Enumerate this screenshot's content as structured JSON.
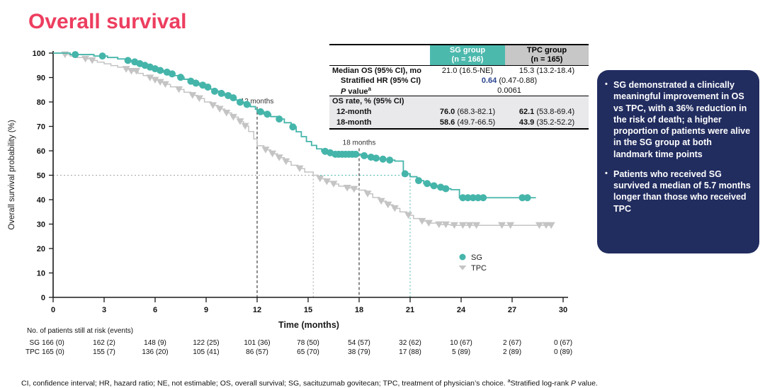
{
  "title": "Overall survival",
  "chart_data": {
    "type": "line",
    "subtype": "kaplan-meier-step",
    "title": "Overall survival",
    "xlabel": "Time (months)",
    "ylabel": "Overall survival probability (%)",
    "xlim": [
      0,
      30
    ],
    "ylim": [
      0,
      100
    ],
    "x_ticks": [
      0,
      3,
      6,
      9,
      12,
      15,
      18,
      21,
      24,
      27,
      30
    ],
    "y_ticks": [
      0,
      10,
      20,
      30,
      40,
      50,
      60,
      70,
      80,
      90,
      100
    ],
    "grid": false,
    "legend_position": "inside-right",
    "reference_line_percent": 50,
    "landmarks": [
      {
        "t": 12,
        "label": "12 months",
        "line_top_percent": 78
      },
      {
        "t": 18,
        "label": "18 months",
        "line_top_percent": 61
      }
    ],
    "medians": [
      {
        "series": "SG",
        "months": 21.0,
        "color": "#45B5AA"
      },
      {
        "series": "TPC",
        "months": 15.3,
        "color": "#A6A6A6"
      }
    ],
    "series": [
      {
        "name": "SG",
        "color": "#45B5AA",
        "marker": "circle",
        "end_t": 28.4,
        "steps": [
          [
            0,
            100
          ],
          [
            1,
            99.4
          ],
          [
            2.4,
            98.8
          ],
          [
            3.2,
            98.2
          ],
          [
            3.8,
            97.6
          ],
          [
            4.3,
            97
          ],
          [
            4.7,
            96.4
          ],
          [
            5,
            95.7
          ],
          [
            5.3,
            95
          ],
          [
            5.6,
            94.3
          ],
          [
            5.9,
            93.6
          ],
          [
            6.2,
            92.9
          ],
          [
            6.5,
            92.2
          ],
          [
            6.8,
            91.5
          ],
          [
            7.1,
            90.8
          ],
          [
            7.4,
            90.1
          ],
          [
            7.7,
            89.3
          ],
          [
            8,
            88.5
          ],
          [
            8.3,
            87.7
          ],
          [
            8.6,
            86.9
          ],
          [
            8.9,
            86.1
          ],
          [
            9.2,
            85.3
          ],
          [
            9.5,
            84.4
          ],
          [
            9.8,
            83.5
          ],
          [
            10.1,
            82.6
          ],
          [
            10.4,
            81.7
          ],
          [
            10.7,
            80.8
          ],
          [
            11,
            79.9
          ],
          [
            11.3,
            79
          ],
          [
            11.6,
            78.1
          ],
          [
            11.9,
            77
          ],
          [
            12,
            76
          ],
          [
            12.4,
            75
          ],
          [
            12.8,
            74
          ],
          [
            13.2,
            73
          ],
          [
            13.6,
            71.5
          ],
          [
            14,
            69.8
          ],
          [
            14.3,
            67.8
          ],
          [
            14.6,
            65.8
          ],
          [
            14.9,
            63.8
          ],
          [
            15.2,
            62.2
          ],
          [
            15.5,
            60.8
          ],
          [
            15.8,
            59.8
          ],
          [
            16.1,
            59.2
          ],
          [
            16.4,
            58.6
          ],
          [
            18.1,
            58
          ],
          [
            18.5,
            57.4
          ],
          [
            18.9,
            57
          ],
          [
            19.3,
            56.6
          ],
          [
            19.7,
            56.2
          ],
          [
            20.1,
            55.8
          ],
          [
            20.6,
            50.6
          ],
          [
            21,
            49.4
          ],
          [
            21.4,
            47.8
          ],
          [
            21.8,
            46.6
          ],
          [
            22.2,
            45.7
          ],
          [
            22.6,
            45.1
          ],
          [
            23,
            44.5
          ],
          [
            23.4,
            44.1
          ],
          [
            23.9,
            40.8
          ]
        ],
        "censor_t": [
          1.3,
          2.9,
          4.4,
          4.8,
          5.1,
          5.4,
          5.7,
          6,
          6.3,
          6.7,
          7,
          7.5,
          8.1,
          8.4,
          8.8,
          9.1,
          9.5,
          9.9,
          10.3,
          10.6,
          11,
          11.4,
          12.2,
          12.6,
          13.3,
          14.1,
          16,
          16.3,
          16.6,
          16.8,
          17,
          17.2,
          17.4,
          17.6,
          17.8,
          18.3,
          18.7,
          19,
          19.4,
          19.8,
          20.7,
          21.5,
          22,
          22.4,
          22.8,
          23.1,
          24.1,
          24.4,
          24.7,
          25,
          25.3,
          27.6,
          27.9
        ]
      },
      {
        "name": "TPC",
        "color": "#C4C4C4",
        "marker": "triangle-down",
        "end_t": 29.4,
        "steps": [
          [
            0,
            100
          ],
          [
            0.6,
            99.4
          ],
          [
            1,
            98.8
          ],
          [
            1.4,
            98.2
          ],
          [
            1.8,
            97.6
          ],
          [
            2.2,
            97
          ],
          [
            2.6,
            96.3
          ],
          [
            3,
            95.6
          ],
          [
            3.4,
            94.9
          ],
          [
            3.8,
            94.2
          ],
          [
            4.2,
            93.4
          ],
          [
            4.6,
            92.6
          ],
          [
            5,
            91.7
          ],
          [
            5.3,
            90.8
          ],
          [
            5.6,
            89.9
          ],
          [
            5.9,
            89
          ],
          [
            6.2,
            88.1
          ],
          [
            6.5,
            87.2
          ],
          [
            6.9,
            86.2
          ],
          [
            7.3,
            85.1
          ],
          [
            7.7,
            84
          ],
          [
            8.1,
            82.7
          ],
          [
            8.5,
            81.4
          ],
          [
            8.9,
            80
          ],
          [
            9.3,
            78.6
          ],
          [
            9.7,
            77.1
          ],
          [
            10.1,
            75.5
          ],
          [
            10.5,
            73.8
          ],
          [
            10.9,
            72
          ],
          [
            11.2,
            70.1
          ],
          [
            11.5,
            67.9
          ],
          [
            11.8,
            64.9
          ],
          [
            12,
            62.1
          ],
          [
            12.4,
            60.4
          ],
          [
            12.8,
            58.8
          ],
          [
            13.2,
            57.2
          ],
          [
            13.6,
            55.6
          ],
          [
            14,
            54.1
          ],
          [
            14.4,
            52.7
          ],
          [
            14.8,
            51.3
          ],
          [
            15.3,
            50
          ],
          [
            15.6,
            48.6
          ],
          [
            16,
            47.4
          ],
          [
            16.4,
            46.4
          ],
          [
            16.8,
            45.5
          ],
          [
            17.2,
            44.8
          ],
          [
            17.6,
            44.3
          ],
          [
            18,
            43.9
          ],
          [
            18.4,
            42.4
          ],
          [
            18.8,
            40.9
          ],
          [
            19.2,
            39.4
          ],
          [
            19.6,
            37.9
          ],
          [
            20,
            36.4
          ],
          [
            20.4,
            35
          ],
          [
            20.8,
            33.6
          ],
          [
            21.2,
            32.3
          ],
          [
            21.6,
            31.2
          ],
          [
            22,
            30.4
          ],
          [
            22.6,
            29.8
          ],
          [
            23.4,
            29.5
          ]
        ],
        "censor_t": [
          0.7,
          1.9,
          2.3,
          4.3,
          4.6,
          4.9,
          5.7,
          6,
          6.3,
          6.6,
          7.4,
          8.2,
          8.6,
          9.4,
          9.8,
          10.2,
          10.6,
          11,
          11.3,
          12.5,
          12.9,
          13.3,
          13.7,
          14.5,
          15.7,
          16.1,
          16.5,
          17.3,
          17.7,
          18.5,
          19.3,
          19.7,
          20.1,
          20.9,
          21.7,
          22.1,
          22.7,
          23.1,
          23.6,
          24.1,
          24.5,
          24.9,
          26.4,
          26.9,
          28.6,
          29,
          29.3
        ]
      }
    ]
  },
  "inset_table": {
    "columns": [
      {
        "name": "SG group",
        "n": "(n = 166)"
      },
      {
        "name": "TPC group",
        "n": "(n = 165)"
      }
    ],
    "median_label": "Median OS (95% CI), mo",
    "median_sg": "21.0 (16.5-NE)",
    "median_tpc": "15.3 (13.2-18.4)",
    "hr_label": "Stratified HR (95% CI)",
    "hr_bold": "0.64",
    "hr_rest": " (0.47-0.88)",
    "p_label_italic": "P",
    "p_label_rest": " value",
    "p_label_sup": "a",
    "p_value": "0.0061",
    "os_section": "OS rate, % (95% CI)",
    "m12_label": "12-month",
    "m12_sg_b": "76.0",
    "m12_sg_r": " (68.3-82.1)",
    "m12_tpc_b": "62.1",
    "m12_tpc_r": " (53.8-69.4)",
    "m18_label": "18-month",
    "m18_sg_b": "58.6",
    "m18_sg_r": " (49.7-66.5)",
    "m18_tpc_b": "43.9",
    "m18_tpc_r": " (35.2-52.2)"
  },
  "side_panel": {
    "bullets": [
      "SG demonstrated a clinically meaningful improvement in OS vs TPC, with a 36% reduction in the risk of death; a higher proportion of patients were alive in the SG group at both landmark time points",
      "Patients who received SG survived a median of 5.7 months longer than those who received TPC"
    ]
  },
  "risk_table": {
    "caption": "No. of patients still at risk (events)",
    "time_points": [
      0,
      3,
      6,
      9,
      12,
      15,
      18,
      21,
      24,
      27,
      30
    ],
    "rows": [
      {
        "label": "SG",
        "values": [
          "166 (0)",
          "162 (2)",
          "148 (9)",
          "122 (25)",
          "101 (36)",
          "78 (50)",
          "54 (57)",
          "32 (62)",
          "10 (67)",
          "2 (67)",
          "0 (67)"
        ]
      },
      {
        "label": "TPC",
        "values": [
          "165 (0)",
          "155 (7)",
          "136 (20)",
          "105 (41)",
          "86 (57)",
          "65 (70)",
          "38 (79)",
          "17 (88)",
          "5 (89)",
          "2 (89)",
          "0 (89)"
        ]
      }
    ]
  },
  "footnote": {
    "main": "CI, confidence interval; HR, hazard ratio; NE, not estimable; OS, overall survival; SG, sacituzumab govitecan; TPC, treatment of physician’s choice. ",
    "sup": "a",
    "rest": "Stratified log-rank ",
    "p_italic": "P",
    "tail": " value."
  },
  "colors": {
    "title_pink": "#ED3E5F",
    "sg_teal": "#45B5AA",
    "tpc_gray": "#C4C4C4",
    "panel_navy": "#212C5F",
    "hr_blue": "#2B4590"
  }
}
